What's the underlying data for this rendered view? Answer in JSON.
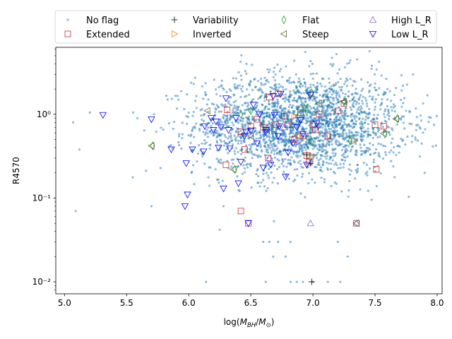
{
  "chart_data": {
    "type": "scatter",
    "title": "",
    "xlabel": "log(M_BH/M_sun)",
    "xlabel_parts": {
      "pre": "log(",
      "main": "M",
      "sub1": "BH",
      "slash": "/",
      "main2": "M",
      "sub2": "⊙",
      "post": ")"
    },
    "ylabel": "R4570",
    "xlim": [
      4.93,
      8.04
    ],
    "ylim": [
      0.0072,
      6.3
    ],
    "yscale": "log",
    "x_ticks": [
      5.0,
      5.5,
      6.0,
      6.5,
      7.0,
      7.5,
      8.0
    ],
    "x_tick_labels": [
      "5.0",
      "5.5",
      "6.0",
      "6.5",
      "7.0",
      "7.5",
      "8.0"
    ],
    "y_ticks": [
      0.01,
      0.1,
      1
    ],
    "y_tick_labels": [
      "10⁻²",
      "10⁻¹",
      "10⁰"
    ],
    "legend_location": "upper center, outside above axes",
    "legend_entries": [
      {
        "label": "No flag",
        "marker": "dot",
        "color": "#1f77b4"
      },
      {
        "label": "Variability",
        "marker": "plus",
        "color": "#000000"
      },
      {
        "label": "Flat",
        "marker": "thin-diamond",
        "color": "#2ca02c"
      },
      {
        "label": "High L_R",
        "marker": "triangle-up",
        "color": "#9467bd"
      },
      {
        "label": "Extended",
        "marker": "square",
        "color": "#d62728"
      },
      {
        "label": "Inverted",
        "marker": "triangle-right",
        "color": "#ff7f0e"
      },
      {
        "label": "Steep",
        "marker": "triangle-left",
        "color": "#556b2f"
      },
      {
        "label": "Low L_R",
        "marker": "triangle-down",
        "color": "#0000ff"
      }
    ],
    "series": [
      {
        "name": "No flag",
        "note": "about 2,400 faint points; density concentrated near log M 6.8–7.1, R4570 0.5–1.5",
        "cloud": {
          "count": 2400,
          "x_mean": 6.9,
          "x_sd": 0.42,
          "logy_mean": -0.12,
          "logy_sd": 0.3
        },
        "points": [
          [
            5.07,
            0.8
          ],
          [
            5.12,
            0.38
          ],
          [
            5.09,
            0.07
          ],
          [
            5.7,
            0.08
          ],
          [
            5.72,
            1.0
          ],
          [
            6.28,
            0.08
          ],
          [
            6.14,
            0.01
          ],
          [
            6.62,
            0.01
          ],
          [
            6.82,
            0.01
          ],
          [
            6.87,
            0.01
          ],
          [
            6.92,
            0.01
          ],
          [
            7.0,
            0.01
          ],
          [
            7.12,
            0.01
          ],
          [
            7.22,
            0.01
          ],
          [
            6.69,
            3.6
          ],
          [
            7.3,
            4.4
          ],
          [
            7.6,
            1.5
          ],
          [
            7.8,
            0.55
          ],
          [
            7.9,
            0.2
          ],
          [
            7.75,
            1.1
          ],
          [
            6.6,
            0.03
          ],
          [
            6.65,
            0.03
          ],
          [
            6.68,
            0.02
          ],
          [
            6.72,
            0.03
          ],
          [
            6.78,
            0.02
          ],
          [
            6.82,
            0.03
          ],
          [
            7.2,
            0.03
          ],
          [
            7.28,
            0.02
          ]
        ]
      },
      {
        "name": "Extended",
        "points": [
          [
            6.3,
            0.25
          ],
          [
            6.31,
            1.13
          ],
          [
            6.42,
            0.62
          ],
          [
            6.42,
            0.07
          ],
          [
            6.45,
            0.38
          ],
          [
            6.48,
            0.05
          ],
          [
            6.5,
            0.72
          ],
          [
            6.55,
            0.87
          ],
          [
            6.6,
            0.7
          ],
          [
            6.64,
            0.3
          ],
          [
            6.65,
            1.6
          ],
          [
            6.7,
            0.75
          ],
          [
            6.72,
            1.75
          ],
          [
            6.77,
            0.95
          ],
          [
            6.8,
            0.75
          ],
          [
            6.85,
            0.5
          ],
          [
            6.9,
            1.05
          ],
          [
            6.92,
            0.55
          ],
          [
            6.95,
            0.32
          ],
          [
            6.97,
            0.27
          ],
          [
            7.0,
            0.75
          ],
          [
            7.02,
            0.65
          ],
          [
            7.05,
            1.0
          ],
          [
            7.12,
            0.55
          ],
          [
            7.2,
            1.1
          ],
          [
            7.25,
            1.35
          ],
          [
            7.35,
            0.05
          ],
          [
            7.5,
            0.75
          ],
          [
            7.51,
            0.22
          ],
          [
            7.57,
            0.72
          ]
        ]
      },
      {
        "name": "Variability",
        "points": [
          [
            6.99,
            0.01
          ],
          [
            6.98,
            0.26
          ],
          [
            6.95,
            0.33
          ]
        ]
      },
      {
        "name": "Inverted",
        "points": [
          [
            6.85,
            0.95
          ],
          [
            6.88,
            0.55
          ],
          [
            7.33,
            0.48
          ],
          [
            6.99,
            0.32
          ]
        ]
      },
      {
        "name": "Flat",
        "points": [
          [
            6.42,
            1.0
          ],
          [
            6.5,
            1.1
          ],
          [
            6.93,
            1.2
          ],
          [
            6.95,
            1.1
          ],
          [
            6.99,
            1.8
          ],
          [
            6.98,
            0.5
          ],
          [
            7.25,
            1.4
          ],
          [
            7.3,
            0.48
          ],
          [
            7.68,
            0.89
          ],
          [
            7.58,
            0.58
          ],
          [
            5.71,
            0.42
          ],
          [
            6.37,
            0.22
          ]
        ]
      },
      {
        "name": "Steep",
        "points": [
          [
            5.7,
            0.42
          ],
          [
            6.15,
            1.1
          ],
          [
            6.36,
            0.22
          ],
          [
            6.5,
            0.55
          ],
          [
            6.63,
            0.65
          ],
          [
            6.98,
            1.75
          ],
          [
            7.05,
            1.35
          ],
          [
            7.25,
            1.42
          ],
          [
            7.35,
            0.05
          ],
          [
            7.57,
            0.59
          ],
          [
            7.67,
            0.88
          ]
        ]
      },
      {
        "name": "High L_R",
        "points": [
          [
            6.98,
            0.05
          ],
          [
            7.35,
            0.05
          ],
          [
            6.77,
            0.7
          ],
          [
            6.65,
            0.3
          ]
        ]
      },
      {
        "name": "Low L_R",
        "points": [
          [
            5.31,
            0.98
          ],
          [
            5.7,
            0.87
          ],
          [
            5.86,
            0.38
          ],
          [
            5.97,
            0.08
          ],
          [
            5.98,
            0.26
          ],
          [
            5.99,
            0.11
          ],
          [
            6.03,
            0.38
          ],
          [
            6.12,
            0.36
          ],
          [
            6.13,
            0.72
          ],
          [
            6.18,
            0.9
          ],
          [
            6.2,
            0.65
          ],
          [
            6.22,
            0.82
          ],
          [
            6.24,
            0.4
          ],
          [
            6.26,
            0.7
          ],
          [
            6.28,
            0.13
          ],
          [
            6.3,
            1.55
          ],
          [
            6.32,
            0.65
          ],
          [
            6.33,
            0.39
          ],
          [
            6.38,
            0.9
          ],
          [
            6.4,
            0.15
          ],
          [
            6.42,
            0.27
          ],
          [
            6.45,
            0.55
          ],
          [
            6.46,
            0.62
          ],
          [
            6.5,
            0.64
          ],
          [
            6.52,
            1.3
          ],
          [
            6.55,
            0.45
          ],
          [
            6.57,
            1.0
          ],
          [
            6.6,
            0.23
          ],
          [
            6.62,
            0.65
          ],
          [
            6.66,
            0.25
          ],
          [
            6.68,
            1.65
          ],
          [
            6.72,
            0.55
          ],
          [
            6.74,
            1.75
          ],
          [
            6.78,
            0.18
          ],
          [
            6.8,
            0.35
          ],
          [
            6.84,
            0.45
          ],
          [
            6.87,
            0.7
          ],
          [
            6.9,
            0.85
          ],
          [
            6.92,
            0.58
          ],
          [
            6.95,
            0.25
          ],
          [
            6.98,
            1.7
          ],
          [
            7.03,
            0.78
          ],
          [
            6.62,
            0.61
          ],
          [
            6.48,
            0.05
          ],
          [
            6.73,
            0.72
          ],
          [
            6.69,
            0.98
          ]
        ]
      }
    ]
  }
}
